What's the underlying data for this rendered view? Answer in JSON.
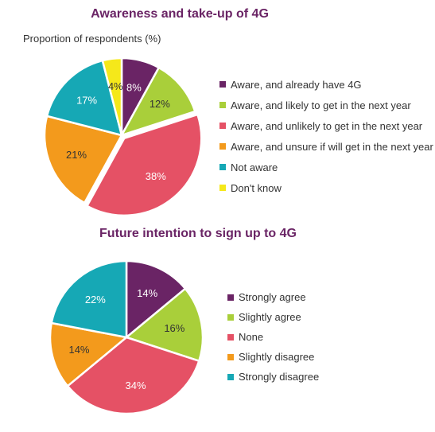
{
  "chart_data": [
    {
      "type": "pie",
      "title": "Awareness and take-up of 4G",
      "subtitle": "Proportion of respondents (%)",
      "legend_position": "right",
      "slices": [
        {
          "label": "Aware, and already have 4G",
          "value": 8,
          "value_label": "8%",
          "color": "#6a2465"
        },
        {
          "label": "Aware, and likely to get in the next year",
          "value": 12,
          "value_label": "12%",
          "color": "#a9cf3a"
        },
        {
          "label": "Aware, and unlikely to get in the next year",
          "value": 38,
          "value_label": "38%",
          "color": "#e55165"
        },
        {
          "label": "Aware, and unsure if will get in the next year",
          "value": 21,
          "value_label": "21%",
          "color": "#f39a1c"
        },
        {
          "label": "Not aware",
          "value": 17,
          "value_label": "17%",
          "color": "#16a8b5"
        },
        {
          "label": "Don't know",
          "value": 4,
          "value_label": "4%",
          "color": "#f5e81a"
        }
      ]
    },
    {
      "type": "pie",
      "title": "Future intention to sign up to 4G",
      "legend_position": "right",
      "slices": [
        {
          "label": "Strongly agree",
          "value": 14,
          "value_label": "14%",
          "color": "#6a2465"
        },
        {
          "label": "Slightly agree",
          "value": 16,
          "value_label": "16%",
          "color": "#a9cf3a"
        },
        {
          "label": "None",
          "value": 34,
          "value_label": "34%",
          "color": "#e55165"
        },
        {
          "label": "Slightly disagree",
          "value": 14,
          "value_label": "14%",
          "color": "#f39a1c"
        },
        {
          "label": "Strongly disagree",
          "value": 22,
          "value_label": "22%",
          "color": "#16a8b5"
        }
      ]
    }
  ]
}
